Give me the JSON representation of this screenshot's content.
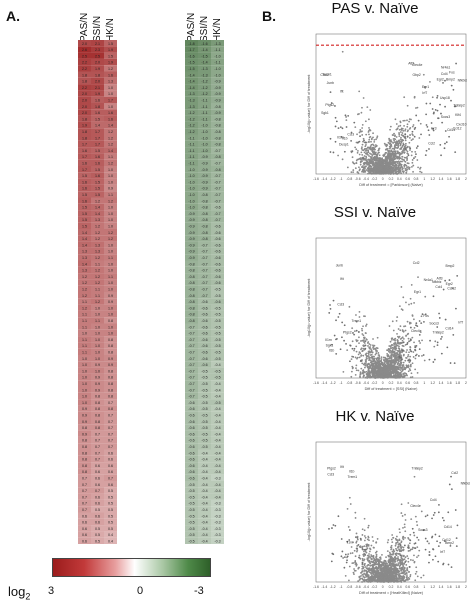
{
  "panels": {
    "a": "A.",
    "b": "B."
  },
  "heatmap": {
    "column_headers_left": [
      "PAS/N",
      "SSI/N",
      "HK/N"
    ],
    "column_headers_right": [
      "PAS/N",
      "SSI/N",
      "HK/N"
    ],
    "left_values": [
      [
        2.0,
        2.1,
        1.5
      ],
      [
        2.6,
        2.3,
        1.9
      ],
      [
        2.5,
        2.5,
        1.5
      ],
      [
        2.2,
        2.0,
        1.9
      ],
      [
        2.2,
        1.9,
        1.2
      ],
      [
        1.8,
        1.8,
        1.6
      ],
      [
        1.8,
        2.0,
        1.3
      ],
      [
        2.2,
        2.1,
        1.0
      ],
      [
        2.0,
        1.9,
        1.0
      ],
      [
        2.0,
        1.6,
        1.7
      ],
      [
        2.0,
        1.8,
        1.0
      ],
      [
        2.0,
        1.6,
        1.6
      ],
      [
        1.8,
        1.5,
        1.6
      ],
      [
        1.9,
        1.4,
        1.4
      ],
      [
        1.8,
        1.7,
        1.2
      ],
      [
        1.8,
        1.7,
        1.2
      ],
      [
        1.7,
        1.7,
        1.2
      ],
      [
        1.6,
        1.5,
        1.4
      ],
      [
        1.7,
        1.6,
        1.1
      ],
      [
        1.6,
        1.6,
        1.2
      ],
      [
        1.7,
        1.5,
        1.0
      ],
      [
        1.5,
        1.6,
        1.0
      ],
      [
        1.6,
        1.5,
        1.0
      ],
      [
        1.6,
        1.5,
        0.9
      ],
      [
        1.5,
        1.5,
        1.1
      ],
      [
        1.6,
        1.2,
        1.2
      ],
      [
        1.5,
        1.4,
        1.0
      ],
      [
        1.5,
        1.4,
        1.0
      ],
      [
        1.5,
        1.3,
        1.0
      ],
      [
        1.5,
        1.2,
        1.0
      ],
      [
        1.4,
        1.2,
        1.2
      ],
      [
        1.4,
        1.2,
        1.2
      ],
      [
        1.4,
        1.3,
        1.0
      ],
      [
        1.3,
        1.3,
        1.0
      ],
      [
        1.3,
        1.2,
        1.1
      ],
      [
        1.4,
        1.1,
        1.0
      ],
      [
        1.3,
        1.2,
        1.0
      ],
      [
        1.2,
        1.2,
        1.1
      ],
      [
        1.2,
        1.2,
        1.0
      ],
      [
        1.2,
        1.1,
        1.0
      ],
      [
        1.2,
        1.1,
        0.9
      ],
      [
        1.1,
        1.2,
        0.9
      ],
      [
        1.2,
        1.0,
        1.0
      ],
      [
        1.1,
        1.0,
        1.0
      ],
      [
        1.1,
        1.1,
        0.8
      ],
      [
        1.1,
        1.0,
        1.0
      ],
      [
        1.0,
        1.0,
        1.0
      ],
      [
        1.1,
        1.0,
        0.8
      ],
      [
        1.1,
        1.0,
        0.8
      ],
      [
        1.1,
        1.0,
        0.8
      ],
      [
        1.0,
        1.0,
        0.9
      ],
      [
        1.0,
        0.9,
        0.9
      ],
      [
        1.0,
        1.0,
        0.8
      ],
      [
        1.0,
        0.9,
        0.8
      ],
      [
        1.0,
        0.9,
        0.8
      ],
      [
        1.0,
        0.9,
        0.8
      ],
      [
        1.0,
        0.8,
        0.8
      ],
      [
        1.0,
        0.8,
        0.7
      ],
      [
        0.9,
        0.8,
        0.8
      ],
      [
        0.9,
        0.8,
        0.7
      ],
      [
        0.9,
        0.8,
        0.7
      ],
      [
        0.8,
        0.8,
        0.7
      ],
      [
        0.9,
        0.7,
        0.7
      ],
      [
        0.8,
        0.7,
        0.7
      ],
      [
        0.8,
        0.7,
        0.7
      ],
      [
        0.8,
        0.7,
        0.6
      ],
      [
        0.8,
        0.7,
        0.6
      ],
      [
        0.8,
        0.6,
        0.6
      ],
      [
        0.8,
        0.6,
        0.6
      ],
      [
        0.7,
        0.6,
        0.7
      ],
      [
        0.7,
        0.6,
        0.6
      ],
      [
        0.7,
        0.7,
        0.5
      ],
      [
        0.7,
        0.6,
        0.5
      ],
      [
        0.7,
        0.6,
        0.5
      ],
      [
        0.7,
        0.5,
        0.5
      ],
      [
        0.6,
        0.6,
        0.5
      ],
      [
        0.6,
        0.6,
        0.5
      ],
      [
        0.6,
        0.5,
        0.5
      ],
      [
        0.6,
        0.5,
        0.4
      ],
      [
        0.6,
        0.5,
        0.4
      ]
    ],
    "right_values": [
      [
        -1.8,
        -1.6,
        -1.3
      ],
      [
        -1.7,
        -1.4,
        -1.1
      ],
      [
        -1.6,
        -1.5,
        -1.0
      ],
      [
        -1.5,
        -1.4,
        -1.1
      ],
      [
        -1.5,
        -1.3,
        -1.0
      ],
      [
        -1.4,
        -1.3,
        -1.0
      ],
      [
        -1.4,
        -1.2,
        -0.9
      ],
      [
        -1.4,
        -1.2,
        -0.9
      ],
      [
        -1.3,
        -1.2,
        -0.9
      ],
      [
        -1.3,
        -1.1,
        -0.9
      ],
      [
        -1.3,
        -1.1,
        -0.8
      ],
      [
        -1.2,
        -1.1,
        -0.9
      ],
      [
        -1.2,
        -1.1,
        -0.8
      ],
      [
        -1.2,
        -1.0,
        -0.8
      ],
      [
        -1.2,
        -1.0,
        -0.8
      ],
      [
        -1.1,
        -1.0,
        -0.8
      ],
      [
        -1.1,
        -1.0,
        -0.8
      ],
      [
        -1.1,
        -1.0,
        -0.7
      ],
      [
        -1.1,
        -0.9,
        -0.8
      ],
      [
        -1.1,
        -0.9,
        -0.7
      ],
      [
        -1.0,
        -0.9,
        -0.8
      ],
      [
        -1.0,
        -0.9,
        -0.7
      ],
      [
        -1.0,
        -0.9,
        -0.7
      ],
      [
        -1.0,
        -0.9,
        -0.7
      ],
      [
        -1.0,
        -0.8,
        -0.7
      ],
      [
        -1.0,
        -0.8,
        -0.7
      ],
      [
        -1.0,
        -0.8,
        -0.6
      ],
      [
        -0.9,
        -0.8,
        -0.7
      ],
      [
        -0.9,
        -0.8,
        -0.7
      ],
      [
        -0.9,
        -0.8,
        -0.6
      ],
      [
        -0.9,
        -0.8,
        -0.6
      ],
      [
        -0.9,
        -0.8,
        -0.6
      ],
      [
        -0.9,
        -0.7,
        -0.6
      ],
      [
        -0.9,
        -0.7,
        -0.6
      ],
      [
        -0.9,
        -0.7,
        -0.6
      ],
      [
        -0.8,
        -0.7,
        -0.6
      ],
      [
        -0.8,
        -0.7,
        -0.6
      ],
      [
        -0.8,
        -0.7,
        -0.6
      ],
      [
        -0.8,
        -0.7,
        -0.6
      ],
      [
        -0.8,
        -0.7,
        -0.5
      ],
      [
        -0.8,
        -0.7,
        -0.5
      ],
      [
        -0.8,
        -0.6,
        -0.6
      ],
      [
        -0.8,
        -0.6,
        -0.5
      ],
      [
        -0.8,
        -0.6,
        -0.5
      ],
      [
        -0.8,
        -0.6,
        -0.5
      ],
      [
        -0.7,
        -0.6,
        -0.5
      ],
      [
        -0.7,
        -0.6,
        -0.5
      ],
      [
        -0.7,
        -0.6,
        -0.5
      ],
      [
        -0.7,
        -0.6,
        -0.5
      ],
      [
        -0.7,
        -0.6,
        -0.5
      ],
      [
        -0.7,
        -0.6,
        -0.5
      ],
      [
        -0.7,
        -0.6,
        -0.4
      ],
      [
        -0.7,
        -0.5,
        -0.5
      ],
      [
        -0.7,
        -0.5,
        -0.5
      ],
      [
        -0.7,
        -0.5,
        -0.4
      ],
      [
        -0.7,
        -0.5,
        -0.4
      ],
      [
        -0.7,
        -0.5,
        -0.4
      ],
      [
        -0.6,
        -0.5,
        -0.5
      ],
      [
        -0.6,
        -0.5,
        -0.4
      ],
      [
        -0.6,
        -0.5,
        -0.4
      ],
      [
        -0.6,
        -0.5,
        -0.4
      ],
      [
        -0.6,
        -0.5,
        -0.4
      ],
      [
        -0.6,
        -0.5,
        -0.4
      ],
      [
        -0.6,
        -0.5,
        -0.4
      ],
      [
        -0.6,
        -0.5,
        -0.4
      ],
      [
        -0.6,
        -0.4,
        -0.4
      ],
      [
        -0.6,
        -0.4,
        -0.4
      ],
      [
        -0.6,
        -0.4,
        -0.4
      ],
      [
        -0.6,
        -0.4,
        -0.4
      ],
      [
        -0.6,
        -0.4,
        -0.3
      ],
      [
        -0.5,
        -0.4,
        -0.4
      ],
      [
        -0.5,
        -0.4,
        -0.4
      ],
      [
        -0.5,
        -0.4,
        -0.4
      ],
      [
        -0.5,
        -0.4,
        -0.3
      ],
      [
        -0.5,
        -0.4,
        -0.3
      ],
      [
        -0.5,
        -0.4,
        -0.3
      ],
      [
        -0.5,
        -0.4,
        -0.3
      ],
      [
        -0.5,
        -0.4,
        -0.3
      ],
      [
        -0.5,
        -0.4,
        -0.3
      ],
      [
        -0.5,
        -0.4,
        -0.3
      ]
    ],
    "colors": {
      "high": "#9b1c1c",
      "mid": "#ffffff",
      "low": "#2e5f29"
    }
  },
  "legend": {
    "log_base": "log",
    "subscript": "2",
    "labels": [
      "3",
      "0",
      "-3"
    ]
  },
  "chart_data": [
    {
      "type": "scatter",
      "title": "PAS v. Naïve",
      "xlabel": "Diff of treatment = [Parkinson] (Naive)",
      "ylabel": "-log10(p value) for Diff of treatment",
      "xlim": [
        -1.6,
        2.0
      ],
      "threshold_line": true,
      "labels": [
        "Ifit",
        "Ccl12",
        "Irf7",
        "Il1b",
        "Tnfaip2",
        "Ccl4",
        "Ccl3",
        "Cd14",
        "Bmp2",
        "Trem1",
        "Clec4e",
        "Ccl2",
        "Ptgs2",
        "Socs3",
        "Nfkbiz",
        "Il1rn",
        "Atf3",
        "Egr2",
        "Sgk1",
        "Nr4a1",
        "Fos",
        "Junb",
        "Egr1",
        "Ier3",
        "Dusp1",
        "Klf4",
        "Cxcl10",
        "Cxcl2",
        "Gbp2",
        "Usp18"
      ]
    },
    {
      "type": "scatter",
      "title": "SSI v. Naïve",
      "xlabel": "Diff of treatment = [SSI] (Naive)",
      "ylabel": "-log10(p value) for Diff of treatment",
      "xlim": [
        -1.6,
        2.0
      ],
      "threshold_line": false,
      "labels": [
        "Ifit",
        "Ccl12",
        "Irf7",
        "Il1b",
        "Tnfaip2",
        "Ccl4",
        "Ccl3",
        "Cd14",
        "Bmp2",
        "Trem1",
        "Clec4e",
        "Ccl2",
        "Ptgs2",
        "Socs3",
        "Nfkbiz",
        "Il1rn",
        "Atf3",
        "Egr2",
        "Sgk1",
        "Nr4a1",
        "Fos",
        "Junb",
        "Egr1"
      ]
    },
    {
      "type": "scatter",
      "title": "HK v. Naïve",
      "xlabel": "Diff of treatment = [HeatKilled] (Naive)",
      "ylabel": "-log10(p value) for Diff of treatment",
      "xlim": [
        -1.6,
        2.0
      ],
      "threshold_line": false,
      "labels": [
        "Ifit",
        "Ccl12",
        "Irf7",
        "Il1b",
        "Tnfaip2",
        "Ccl4",
        "Ccl3",
        "Cd14",
        "Bmp2",
        "Trem1",
        "Clec4e",
        "Ccl2",
        "Ptgs2",
        "Socs3",
        "Nfkbiz",
        "Il1rn"
      ]
    }
  ]
}
